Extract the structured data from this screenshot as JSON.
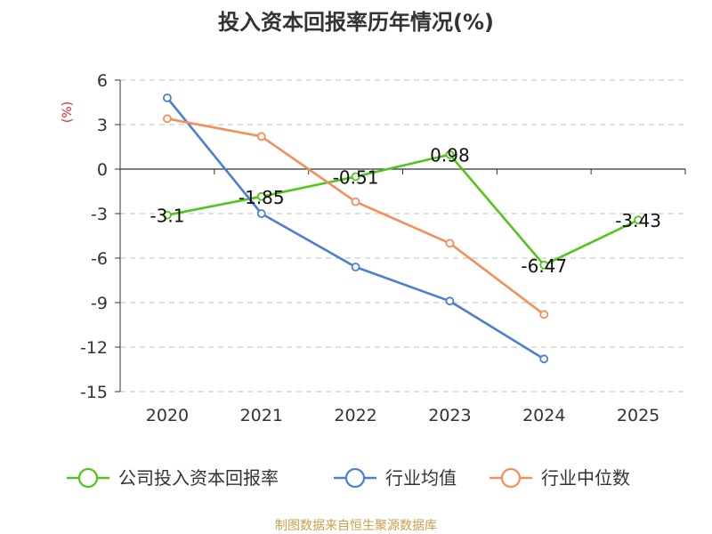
{
  "chart_data": {
    "type": "line",
    "title": "投入资本回报率历年情况(%)",
    "ylabel": "(%)",
    "xlabel": "",
    "categories": [
      "2020",
      "2021",
      "2022",
      "2023",
      "2024",
      "2025"
    ],
    "ylim": [
      -15,
      6
    ],
    "yticks": [
      6,
      3,
      0,
      -3,
      -6,
      -9,
      -12,
      -15
    ],
    "grid": true,
    "legend_position": "bottom",
    "series": [
      {
        "name": "公司投入资本回报率",
        "color": "#52c41a",
        "values": [
          -3.1,
          -1.85,
          -0.51,
          0.98,
          -6.47,
          -3.43
        ],
        "labels": [
          "-3.1",
          "-1.85",
          "-0.51",
          "0.98",
          "-6.47",
          "-3.43"
        ]
      },
      {
        "name": "行业均值",
        "color": "#4a7fd4",
        "values": [
          4.8,
          -3.0,
          -6.6,
          -8.9,
          -12.8,
          null
        ]
      },
      {
        "name": "行业中位数",
        "color": "#f58f5a",
        "values": [
          3.4,
          2.2,
          -2.2,
          -5.0,
          -9.8,
          null
        ]
      }
    ],
    "source": "制图数据来自恒生聚源数据库"
  }
}
